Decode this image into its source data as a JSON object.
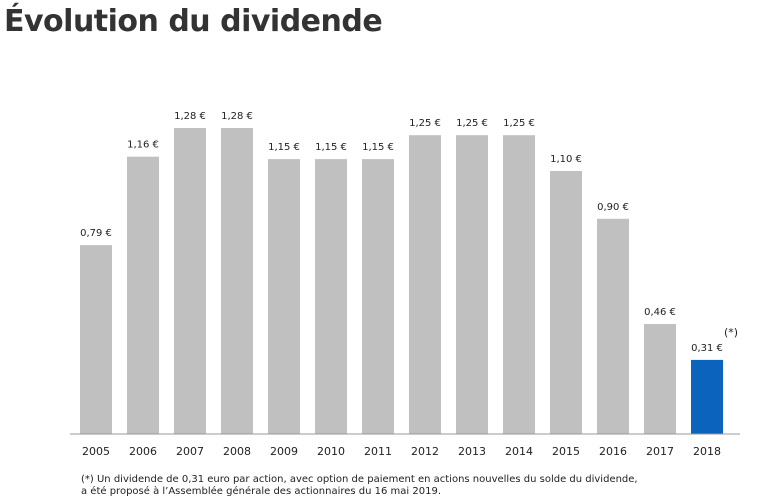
{
  "title": "Évolution du dividende",
  "colors": {
    "bar_default": "#c0c0c0",
    "bar_highlight": "#0b63bd",
    "axis": "#999999",
    "text": "#222222"
  },
  "chart_data": {
    "type": "bar",
    "categories": [
      "2005",
      "2006",
      "2007",
      "2008",
      "2009",
      "2010",
      "2011",
      "2012",
      "2013",
      "2014",
      "2015",
      "2016",
      "2017",
      "2018"
    ],
    "values": [
      0.79,
      1.16,
      1.28,
      1.28,
      1.15,
      1.15,
      1.15,
      1.25,
      1.25,
      1.25,
      1.1,
      0.9,
      0.46,
      0.31
    ],
    "value_labels": [
      "0,79 €",
      "1,16 €",
      "1,28 €",
      "1,28 €",
      "1,15 €",
      "1,15 €",
      "1,15 €",
      "1,25 €",
      "1,25 €",
      "1,25 €",
      "1,10 €",
      "0,90 €",
      "0,46 €",
      "0,31 €"
    ],
    "highlight_index": 13,
    "annotation": "(*)",
    "ylim": [
      0,
      1.28
    ],
    "grid": false,
    "legend": "none"
  },
  "footnote": {
    "line1": "(*) Un dividende de 0,31 euro par action, avec option de paiement en actions nouvelles du solde du dividende,",
    "line2": "a été proposé à l’Assemblée générale des actionnaires du 16 mai 2019."
  }
}
